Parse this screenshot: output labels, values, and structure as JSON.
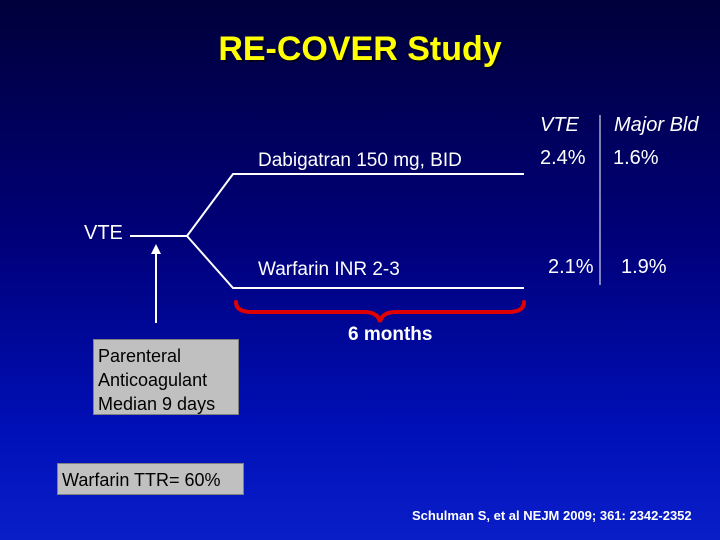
{
  "title": "RE-COVER Study",
  "table": {
    "col_vte": "VTE",
    "col_major_bld": "Major Bld"
  },
  "arms": [
    {
      "label": "Dabigatran 150 mg, BID",
      "vte": "2.4%",
      "major_bld": "1.6%"
    },
    {
      "label": "Warfarin INR 2-3",
      "vte": "2.1%",
      "major_bld": "1.9%"
    }
  ],
  "origin_label": "VTE",
  "duration_label": "6 months",
  "parenteral_box": {
    "lines": [
      "Parenteral",
      "Anticoagulant",
      "Median 9 days"
    ]
  },
  "ttr_box": "Warfarin TTR= 60%",
  "citation": "Schulman S, et al NEJM 2009; 361: 2342-2352",
  "colors": {
    "title": "#ffff00",
    "brace": "#e00000",
    "line": "#ffffff",
    "box_bg": "#c0c0c0"
  }
}
